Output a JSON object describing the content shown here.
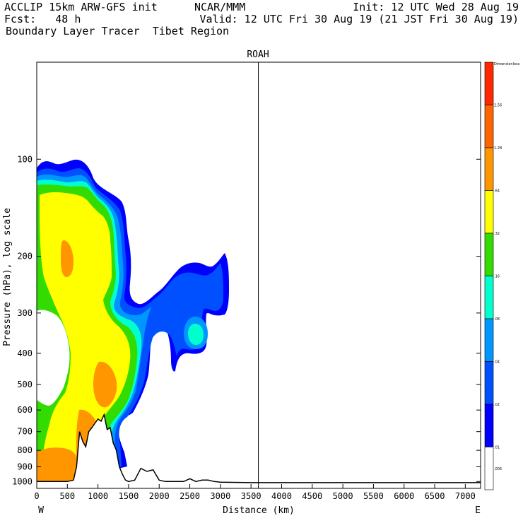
{
  "header": {
    "line1_left": "ACCLIP 15km ARW-GFS init",
    "line1_center": "NCAR/MMM",
    "line1_right": "Init: 12 UTC Wed 28 Aug 19",
    "line2_left": "Fcst:   48 h",
    "line2_right": "Valid: 12 UTC Fri 30 Aug 19 (21 JST Fri 30 Aug 19)",
    "line3_left": "Boundary Layer Tracer  Tibet Region"
  },
  "chart_data": {
    "type": "cross-section contour",
    "panel_label": "ROAH",
    "xlabel": "Distance (km)",
    "ylabel": "Pressure (hPa), log scale",
    "xlim": [
      0,
      7250
    ],
    "ylim_hpa": [
      1050,
      50
    ],
    "y_scale": "log",
    "x_ticks": [
      0,
      500,
      1000,
      1500,
      2000,
      2500,
      3000,
      3500,
      4000,
      4500,
      5000,
      5500,
      6000,
      6500,
      7000
    ],
    "y_ticks": [
      100,
      200,
      300,
      400,
      500,
      600,
      700,
      800,
      900,
      1000
    ],
    "west_label": "W",
    "east_label": "E",
    "vertical_line_km": 3620,
    "colorbar": {
      "levels_top_to_bottom": [
        "Dimensionless",
        "2.56",
        "1.28",
        ".64",
        ".32",
        ".16",
        ".08",
        ".04",
        ".02",
        ".01",
        ".005"
      ],
      "colors_top_to_bottom": [
        "#ff2800",
        "#ff6400",
        "#ff9600",
        "#ffff00",
        "#32dc00",
        "#00ffcd",
        "#0096ff",
        "#0050ff",
        "#0000ff",
        "#ffffff"
      ]
    },
    "terrain_profile": {
      "distance_km": [
        0,
        500,
        600,
        650,
        700,
        750,
        800,
        850,
        900,
        950,
        1000,
        1050,
        1100,
        1150,
        1200,
        1250,
        1300,
        1350,
        1400,
        1450,
        1500,
        1600,
        1700,
        1800,
        1900,
        2000,
        2100,
        2200,
        2400,
        2500,
        2600,
        2700,
        2800,
        2900,
        3000,
        3500,
        4000,
        4500,
        5000,
        6000,
        7000,
        7250
      ],
      "pressure_hpa": [
        1000,
        1000,
        990,
        900,
        700,
        750,
        780,
        700,
        680,
        660,
        640,
        650,
        620,
        690,
        680,
        760,
        800,
        900,
        950,
        990,
        1000,
        990,
        910,
        930,
        920,
        990,
        1000,
        1000,
        1000,
        980,
        1000,
        990,
        990,
        1000,
        1005,
        1008,
        1008,
        1008,
        1008,
        1008,
        1008,
        1008
      ]
    },
    "tracer_shading": "Tracer concentrations shaded from 0 to ~3100 km between surface and ~100 hPa; highest values (orange, 0.64-1.28) near surface west of 650 km and around 1100-1300 km at 450-700 hPa; yellow (0.32-0.64) core from 100 to 500 hPa west of 1500 km; isolated blue/cyan plume near 2500-3100 km at 250-450 hPa."
  }
}
